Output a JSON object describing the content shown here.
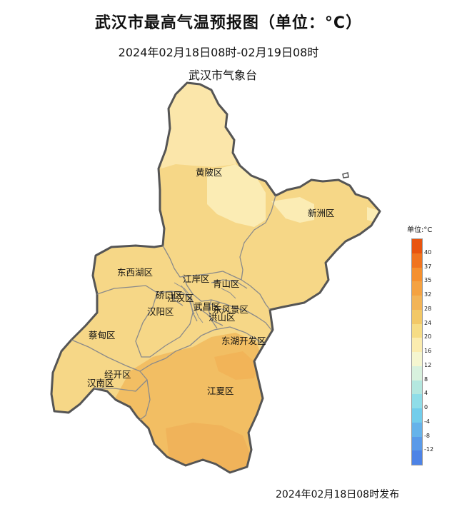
{
  "map": {
    "title": "武汉市最高气温预报图（单位：°C）",
    "subtitle": "2024年02月18日08时-02月19日08时",
    "agency": "武汉市气象台",
    "footer": "2024年02月18日08时发布",
    "districts": [
      {
        "name": "黄陂区"
      },
      {
        "name": "新洲区"
      },
      {
        "name": "东西湖区"
      },
      {
        "name": "江岸区"
      },
      {
        "name": "青山区"
      },
      {
        "name": "硚口区"
      },
      {
        "name": "江汉区"
      },
      {
        "name": "汉阳区"
      },
      {
        "name": "武昌区"
      },
      {
        "name": "洪山区"
      },
      {
        "name": "东风景区"
      },
      {
        "name": "蔡甸区"
      },
      {
        "name": "东湖开发区"
      },
      {
        "name": "经开区"
      },
      {
        "name": "汉南区"
      },
      {
        "name": "江夏区"
      }
    ],
    "legend": {
      "title": "单位:°C",
      "ticks": [
        "40",
        "37",
        "35",
        "32",
        "28",
        "24",
        "20",
        "16",
        "12",
        "8",
        "4",
        "0",
        "-4",
        "-8",
        "-12"
      ],
      "colors": [
        "#e8540f",
        "#f07420",
        "#f5902f",
        "#f4a242",
        "#f2b458",
        "#f2c867",
        "#f6dc85",
        "#fbecaf",
        "#f5f6d0",
        "#d8f1de",
        "#b4e7df",
        "#8fdde8",
        "#72cdeb",
        "#66b3ea",
        "#5a9ae8",
        "#4d83e6"
      ]
    }
  }
}
